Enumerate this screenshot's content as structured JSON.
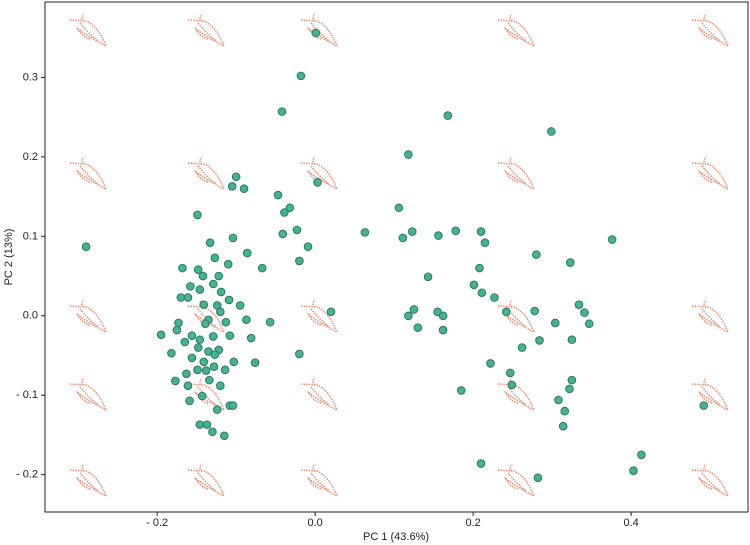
{
  "chart_data": {
    "type": "scatter",
    "x_label": "PC 1 (43.6%)",
    "y_label": "PC 2 (13%)",
    "xlim": [
      -0.342,
      0.548
    ],
    "ylim": [
      -0.247,
      0.395
    ],
    "xticks": [
      {
        "value": -0.2,
        "label": "- 0.2"
      },
      {
        "value": 0,
        "label": "0.0"
      },
      0.2,
      0.4
    ],
    "yticks": [
      {
        "value": -0.2,
        "label": "- 0.2"
      },
      {
        "value": -0.1,
        "label": "- 0.1"
      },
      {
        "value": 0,
        "label": "0.0"
      },
      0.1,
      0.2,
      0.3
    ],
    "color": "#45b294",
    "edge_color": "#2b7661",
    "x": [
      0.001,
      -0.018,
      -0.042,
      0.168,
      0.299,
      0.118,
      -0.1,
      -0.105,
      -0.09,
      0.003,
      -0.047,
      -0.032,
      -0.039,
      -0.149,
      0.106,
      0.376,
      0.063,
      0.111,
      0.123,
      0.156,
      0.178,
      0.21,
      0.215,
      -0.133,
      -0.104,
      -0.086,
      -0.29,
      -0.11,
      -0.127,
      -0.067,
      -0.02,
      -0.009,
      -0.041,
      0.28,
      0.323,
      -0.148,
      -0.168,
      0.143,
      0.208,
      0.201,
      0.211,
      0.227,
      0.242,
      0.278,
      0.334,
      0.341,
      0.347,
      0.304,
      0.284,
      0.325,
      0.262,
      0.222,
      0.247,
      0.249,
      0.325,
      0.322,
      0.308,
      0.316,
      0.314,
      0.185,
      0.21,
      0.282,
      0.413,
      0.403,
      0.492,
      0.02,
      -0.02,
      -0.076,
      -0.103,
      -0.108,
      -0.115,
      -0.13,
      -0.146,
      -0.159,
      -0.161,
      -0.138,
      -0.195,
      -0.182,
      -0.177,
      -0.173,
      -0.17,
      -0.161,
      -0.158,
      -0.141,
      -0.122,
      -0.129,
      -0.119,
      -0.109,
      -0.095,
      -0.124,
      -0.142,
      -0.146,
      -0.135,
      -0.113,
      -0.087,
      -0.057,
      -0.081,
      -0.108,
      -0.129,
      -0.146,
      -0.165,
      -0.175,
      -0.148,
      -0.135,
      -0.122,
      -0.127,
      -0.141,
      -0.149,
      -0.128,
      -0.114,
      -0.156,
      -0.163,
      -0.134,
      -0.12,
      -0.143,
      -0.124,
      -0.104,
      -0.137,
      0.125,
      0.118,
      0.155,
      0.162,
      0.162,
      0.13,
      -0.139,
      -0.023,
      -0.156,
      -0.12
    ],
    "y": [
      0.356,
      0.302,
      0.257,
      0.252,
      0.232,
      0.203,
      0.175,
      0.163,
      0.16,
      0.168,
      0.152,
      0.136,
      0.13,
      0.127,
      0.136,
      0.096,
      0.105,
      0.098,
      0.106,
      0.101,
      0.107,
      0.106,
      0.092,
      0.092,
      0.098,
      0.079,
      0.087,
      0.065,
      0.073,
      0.06,
      0.069,
      0.087,
      0.103,
      0.077,
      0.067,
      0.058,
      0.06,
      0.049,
      0.06,
      0.039,
      0.029,
      0.023,
      0.005,
      0.006,
      0.014,
      0.004,
      -0.01,
      -0.009,
      -0.031,
      -0.03,
      -0.04,
      -0.06,
      -0.072,
      -0.087,
      -0.081,
      -0.092,
      -0.106,
      -0.12,
      -0.139,
      -0.094,
      -0.186,
      -0.204,
      -0.175,
      -0.195,
      -0.113,
      0.005,
      -0.048,
      -0.059,
      -0.058,
      -0.113,
      -0.151,
      -0.146,
      -0.137,
      -0.107,
      -0.088,
      -0.069,
      -0.024,
      -0.047,
      -0.082,
      -0.009,
      0.023,
      0.023,
      0.037,
      0.014,
      0.05,
      0.04,
      0.03,
      0.02,
      0.013,
      0.013,
      0.05,
      0.033,
      -0.005,
      -0.008,
      -0.005,
      -0.008,
      -0.028,
      -0.025,
      -0.026,
      -0.03,
      -0.033,
      -0.018,
      -0.04,
      -0.045,
      -0.043,
      -0.049,
      -0.058,
      -0.068,
      -0.064,
      -0.068,
      -0.053,
      -0.073,
      -0.081,
      -0.088,
      -0.101,
      -0.118,
      -0.113,
      -0.137,
      0.008,
      0.0,
      0.005,
      0.0,
      -0.018,
      -0.015,
      -0.01,
      0.108,
      -0.025,
      0.005
    ]
  }
}
